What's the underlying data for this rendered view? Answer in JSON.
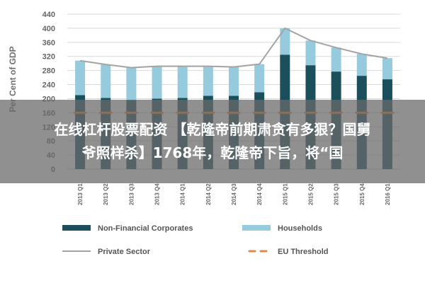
{
  "chart_data": {
    "type": "bar",
    "stacked": true,
    "ylabel": "Per Cent of GDP",
    "ylim": [
      0,
      440
    ],
    "yticks": [
      0,
      40,
      80,
      120,
      160,
      200,
      240,
      280,
      320,
      360,
      400,
      440
    ],
    "categories": [
      "2013 Q1",
      "2013 Q2",
      "2013 Q3",
      "2013 Q4",
      "2014 Q1",
      "2014 Q2",
      "2014 Q3",
      "2014 Q4",
      "2015 Q1",
      "2015 Q2",
      "2015 Q3",
      "2015 Q4",
      "2016 Q1"
    ],
    "series": [
      {
        "name": "Non-Financial Corporates",
        "type": "bar",
        "color": "#1c4f5c",
        "values": [
          210,
          202,
          196,
          200,
          202,
          208,
          208,
          218,
          325,
          295,
          277,
          265,
          255
        ]
      },
      {
        "name": "Households",
        "type": "bar",
        "color": "#96cbdd",
        "values": [
          98,
          95,
          92,
          92,
          90,
          84,
          82,
          80,
          75,
          70,
          68,
          62,
          60
        ]
      },
      {
        "name": "Private Sector",
        "type": "line",
        "color": "#a3a3a3",
        "values": [
          308,
          297,
          288,
          292,
          292,
          292,
          290,
          298,
          400,
          365,
          345,
          327,
          315
        ]
      },
      {
        "name": "EU Threshold",
        "type": "line",
        "color": "#e0894a",
        "dashed": true,
        "values": [
          160,
          160,
          160,
          160,
          160,
          160,
          160,
          160,
          160,
          160,
          160,
          160,
          160
        ]
      }
    ],
    "grid": true,
    "legend_position": "bottom"
  },
  "overlay": {
    "line1": "在线杠杆股票配资 【乾隆帝前期肃贪有多狠？国舅",
    "line2": "爷照样杀】1768年，乾隆帝下旨，将“国"
  }
}
